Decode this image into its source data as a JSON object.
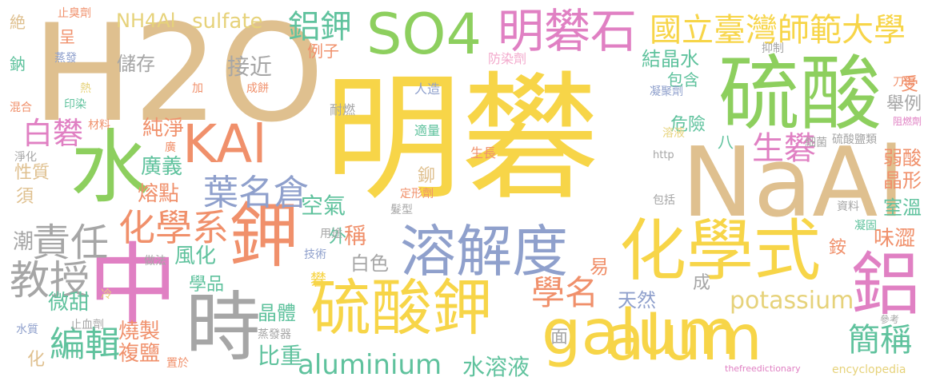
{
  "palette": {
    "yellow": "#f7d548",
    "tan": "#dfc08f",
    "green": "#8dcf5e",
    "salmon": "#f0906b",
    "blue": "#8fa0cc",
    "pink": "#e080c3",
    "gray": "#a6a6a6",
    "teal": "#5fc29d",
    "khaki": "#e6d27a",
    "lightpink": "#f3a9cc"
  },
  "words": [
    {
      "text": "明礬",
      "color": "yellow"
    },
    {
      "text": "H2O",
      "color": "tan"
    },
    {
      "text": "硫酸",
      "color": "green"
    },
    {
      "text": "NaAl",
      "color": "tan"
    },
    {
      "text": "SO4",
      "color": "green"
    },
    {
      "text": "明礬石",
      "color": "pink"
    },
    {
      "text": "國立臺灣師範大學",
      "color": "yellow"
    },
    {
      "text": "KAl",
      "color": "salmon"
    },
    {
      "text": "水",
      "color": "green"
    },
    {
      "text": "鉀",
      "color": "salmon"
    },
    {
      "text": "中",
      "color": "pink"
    },
    {
      "text": "時",
      "color": "gray"
    },
    {
      "text": "溶解度",
      "color": "blue"
    },
    {
      "text": "化學式",
      "color": "yellow"
    },
    {
      "text": "硫酸鉀",
      "color": "yellow"
    },
    {
      "text": "galum",
      "color": "yellow"
    },
    {
      "text": "鋁",
      "color": "pink"
    },
    {
      "text": "alum",
      "color": "yellow"
    },
    {
      "text": "鋁鉀",
      "color": "teal"
    },
    {
      "text": "sulfate",
      "color": "khaki"
    },
    {
      "text": "NH4Al",
      "color": "khaki"
    },
    {
      "text": "白礬",
      "color": "pink"
    },
    {
      "text": "生礬",
      "color": "pink"
    },
    {
      "text": "葉名倉",
      "color": "blue"
    },
    {
      "text": "化學系",
      "color": "salmon"
    },
    {
      "text": "責任",
      "color": "gray"
    },
    {
      "text": "教授",
      "color": "gray"
    },
    {
      "text": "編輯",
      "color": "teal"
    },
    {
      "text": "aluminium",
      "color": "teal"
    },
    {
      "text": "potassium",
      "color": "khaki"
    },
    {
      "text": "水溶液",
      "color": "teal"
    },
    {
      "text": "學名",
      "color": "salmon"
    },
    {
      "text": "簡稱",
      "color": "teal"
    },
    {
      "text": "結晶水",
      "color": "teal"
    },
    {
      "text": "儲存",
      "color": "gray"
    },
    {
      "text": "接近",
      "color": "gray"
    },
    {
      "text": "純淨",
      "color": "salmon"
    },
    {
      "text": "廣義",
      "color": "teal"
    },
    {
      "text": "熔點",
      "color": "salmon"
    },
    {
      "text": "空氣",
      "color": "teal"
    },
    {
      "text": "稱",
      "color": "salmon"
    },
    {
      "text": "外",
      "color": "teal"
    },
    {
      "text": "風化",
      "color": "teal"
    },
    {
      "text": "微甜",
      "color": "teal"
    },
    {
      "text": "燒製",
      "color": "salmon"
    },
    {
      "text": "複鹽",
      "color": "salmon"
    },
    {
      "text": "晶體",
      "color": "teal"
    },
    {
      "text": "比重",
      "color": "teal"
    },
    {
      "text": "天然",
      "color": "blue"
    },
    {
      "text": "白色",
      "color": "gray"
    },
    {
      "text": "易",
      "color": "salmon"
    },
    {
      "text": "危險",
      "color": "teal"
    },
    {
      "text": "包含",
      "color": "teal"
    },
    {
      "text": "舉例",
      "color": "gray"
    },
    {
      "text": "弱酸",
      "color": "salmon"
    },
    {
      "text": "晶形",
      "color": "salmon"
    },
    {
      "text": "室溫",
      "color": "teal"
    },
    {
      "text": "味澀",
      "color": "salmon"
    },
    {
      "text": "銨",
      "color": "salmon"
    },
    {
      "text": "例子",
      "color": "salmon"
    },
    {
      "text": "受",
      "color": "salmon"
    },
    {
      "text": "潮",
      "color": "gray"
    },
    {
      "text": "性質",
      "color": "tan"
    },
    {
      "text": "須",
      "color": "tan"
    },
    {
      "text": "化",
      "color": "tan"
    },
    {
      "text": "學品",
      "color": "teal"
    },
    {
      "text": "礬",
      "color": "yellow"
    },
    {
      "text": "成",
      "color": "gray"
    },
    {
      "text": "面",
      "color": "gray"
    },
    {
      "text": "八",
      "color": "teal"
    },
    {
      "text": "鉚",
      "color": "tan"
    },
    {
      "text": "絶",
      "color": "tan"
    },
    {
      "text": "鈉",
      "color": "teal"
    },
    {
      "text": "呈",
      "color": "salmon"
    },
    {
      "text": "止臭劑",
      "color": "salmon"
    },
    {
      "text": "蒸發",
      "color": "blue"
    },
    {
      "text": "熱",
      "color": "khaki"
    },
    {
      "text": "加",
      "color": "salmon"
    },
    {
      "text": "混合",
      "color": "salmon"
    },
    {
      "text": "印染",
      "color": "teal"
    },
    {
      "text": "成餅",
      "color": "salmon"
    },
    {
      "text": "材料",
      "color": "salmon"
    },
    {
      "text": "淨化",
      "color": "gray"
    },
    {
      "text": "廣",
      "color": "salmon"
    },
    {
      "text": "防染劑",
      "color": "lightpink"
    },
    {
      "text": "抑制",
      "color": "gray"
    },
    {
      "text": "刀傷",
      "color": "salmon"
    },
    {
      "text": "凝聚劑",
      "color": "blue"
    },
    {
      "text": "人造",
      "color": "blue"
    },
    {
      "text": "耐燃",
      "color": "gray"
    },
    {
      "text": "溶液",
      "color": "khaki"
    },
    {
      "text": "適量",
      "color": "teal"
    },
    {
      "text": "生長",
      "color": "salmon"
    },
    {
      "text": "阻燃劑",
      "color": "pink"
    },
    {
      "text": "硫酸鹽類",
      "color": "gray"
    },
    {
      "text": "細菌",
      "color": "gray"
    },
    {
      "text": "http",
      "color": "gray"
    },
    {
      "text": "定形劑",
      "color": "salmon"
    },
    {
      "text": "髮型",
      "color": "gray"
    },
    {
      "text": "包括",
      "color": "gray"
    },
    {
      "text": "資料",
      "color": "gray"
    },
    {
      "text": "凝固",
      "color": "teal"
    },
    {
      "text": "用途",
      "color": "gray"
    },
    {
      "text": "技術",
      "color": "blue"
    },
    {
      "text": "做法",
      "color": "gray"
    },
    {
      "text": "冷",
      "color": "khaki"
    },
    {
      "text": "止血劑",
      "color": "gray"
    },
    {
      "text": "水質",
      "color": "blue"
    },
    {
      "text": "置於",
      "color": "salmon"
    },
    {
      "text": "蒸發器",
      "color": "gray"
    },
    {
      "text": "參考",
      "color": "gray"
    },
    {
      "text": "thefreedictionary",
      "color": "pink"
    },
    {
      "text": "encyclopedia",
      "color": "khaki"
    }
  ]
}
